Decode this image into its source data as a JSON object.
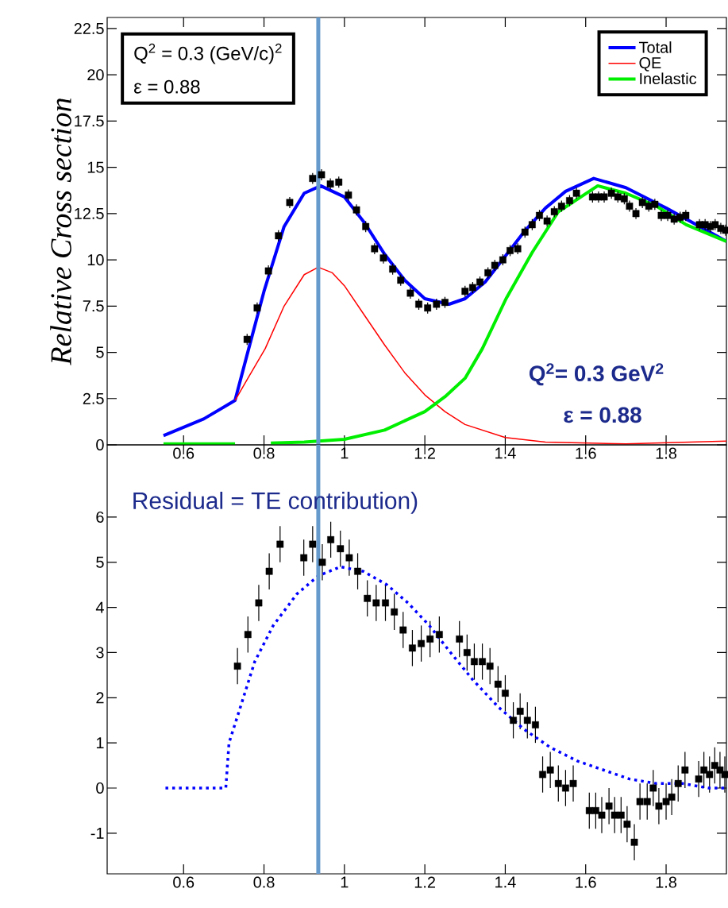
{
  "chart_data": [
    {
      "type": "line",
      "ylabel": "Relative Cross section",
      "xlim": [
        0.41,
        1.95
      ],
      "ylim": [
        0,
        23.1
      ],
      "xticks": [
        0.6,
        0.8,
        1,
        1.2,
        1.4,
        1.6,
        1.8
      ],
      "yticks": [
        0,
        2.5,
        5,
        7.5,
        10,
        12.5,
        15,
        17.5,
        20,
        22.5
      ],
      "legend": "top right",
      "annotations": [
        "Q$^{2}$ = 0.3 (GeV/c)$^{2}$",
        "ε = 0.88",
        "Q$^{2}$= 0.3 GeV$^{2}$",
        "ε = 0.88"
      ],
      "ref_lines": [
        {
          "axis": "x",
          "value": 0.935,
          "color": "#6699cc"
        }
      ],
      "series": [
        {
          "name": "Total",
          "color": "#0000ff",
          "line_style": "solid",
          "x": [
            0.55,
            0.65,
            0.728,
            0.762,
            0.8,
            0.85,
            0.9,
            0.941,
            1.0,
            1.05,
            1.1,
            1.15,
            1.2,
            1.26,
            1.3,
            1.35,
            1.4,
            1.45,
            1.5,
            1.55,
            1.62,
            1.7,
            1.8,
            1.9,
            1.95
          ],
          "values": [
            0.5,
            1.4,
            2.4,
            5.2,
            8.3,
            11.8,
            13.6,
            14.0,
            13.4,
            12.0,
            10.3,
            8.9,
            7.9,
            7.6,
            7.9,
            8.8,
            10.2,
            11.6,
            12.8,
            13.7,
            14.4,
            13.9,
            12.8,
            11.6,
            11.0
          ]
        },
        {
          "name": "QE",
          "color": "#ff0000",
          "line_style": "solid",
          "x": [
            0.728,
            0.76,
            0.803,
            0.85,
            0.9,
            0.935,
            0.97,
            1.0,
            1.05,
            1.1,
            1.15,
            1.2,
            1.25,
            1.3,
            1.4,
            1.5,
            1.7,
            1.95
          ],
          "values": [
            2.4,
            3.6,
            5.2,
            7.5,
            9.2,
            9.6,
            9.3,
            8.6,
            7.0,
            5.4,
            3.9,
            2.7,
            1.8,
            1.1,
            0.4,
            0.15,
            0.05,
            0.2
          ]
        },
        {
          "name": "Inelastic",
          "color": "#00ee00",
          "line_style": "solid",
          "x": [
            0.55,
            0.728,
            0.77,
            0.817,
            0.9,
            1.0,
            1.1,
            1.2,
            1.25,
            1.3,
            1.343,
            1.402,
            1.467,
            1.532,
            1.63,
            1.7,
            1.776,
            1.85,
            1.95
          ],
          "values": [
            0.05,
            0.05,
            null,
            0.1,
            0.15,
            0.3,
            0.8,
            1.8,
            2.6,
            3.6,
            5.2,
            7.9,
            10.4,
            12.6,
            14.0,
            13.6,
            12.9,
            11.9,
            11.0
          ]
        },
        {
          "type": "scatter",
          "color": "#000000",
          "marker": "square",
          "x": [
            0.758,
            0.783,
            0.811,
            0.836,
            0.864,
            0.921,
            0.943,
            0.965,
            0.986,
            1.01,
            1.03,
            1.053,
            1.075,
            1.097,
            1.12,
            1.14,
            1.164,
            1.185,
            1.207,
            1.229,
            1.25,
            1.3,
            1.319,
            1.337,
            1.357,
            1.374,
            1.394,
            1.412,
            1.431,
            1.449,
            1.467,
            1.485,
            1.504,
            1.522,
            1.54,
            1.56,
            1.577,
            1.617,
            1.632,
            1.646,
            1.664,
            1.68,
            1.696,
            1.709,
            1.725,
            1.741,
            1.757,
            1.772,
            1.788,
            1.804,
            1.82,
            1.835,
            1.849,
            1.883,
            1.897,
            1.91,
            1.922,
            1.936,
            1.948
          ],
          "values": [
            5.7,
            7.4,
            9.4,
            11.3,
            13.1,
            14.4,
            14.6,
            14.1,
            14.2,
            13.5,
            12.7,
            11.8,
            10.6,
            10.1,
            9.5,
            8.9,
            8.2,
            7.6,
            7.4,
            7.6,
            7.7,
            8.3,
            8.5,
            8.8,
            9.3,
            9.7,
            10.0,
            10.5,
            10.6,
            11.5,
            11.9,
            12.4,
            12.1,
            12.6,
            12.9,
            13.2,
            13.6,
            13.4,
            13.4,
            13.4,
            13.6,
            13.4,
            13.3,
            12.9,
            12.5,
            13.1,
            12.9,
            13.0,
            12.4,
            12.4,
            12.2,
            12.3,
            12.4,
            11.9,
            11.9,
            11.8,
            11.9,
            11.7,
            11.6
          ],
          "errors": [
            0.3,
            0.3,
            0.3,
            0.3,
            0.3,
            0.3,
            0.3,
            0.3,
            0.3,
            0.3,
            0.3,
            0.3,
            0.3,
            0.3,
            0.3,
            0.3,
            0.3,
            0.3,
            0.3,
            0.3,
            0.3,
            0.3,
            0.3,
            0.3,
            0.3,
            0.3,
            0.3,
            0.3,
            0.3,
            0.3,
            0.3,
            0.3,
            0.3,
            0.3,
            0.3,
            0.3,
            0.3,
            0.3,
            0.3,
            0.3,
            0.3,
            0.3,
            0.3,
            0.3,
            0.3,
            0.3,
            0.3,
            0.3,
            0.3,
            0.3,
            0.3,
            0.3,
            0.3,
            0.3,
            0.3,
            0.3,
            0.3,
            0.3,
            0.3
          ]
        }
      ]
    },
    {
      "type": "line",
      "xlim": [
        0.41,
        1.95
      ],
      "ylim": [
        -1.9,
        7.6
      ],
      "xticks": [
        0.6,
        0.8,
        1,
        1.2,
        1.4,
        1.6,
        1.8
      ],
      "yticks": [
        -1,
        0,
        1,
        2,
        3,
        4,
        5,
        6
      ],
      "annotations": [
        "Residual = TE contribution)"
      ],
      "ref_lines": [
        {
          "axis": "x",
          "value": 0.935,
          "color": "#6699cc"
        }
      ],
      "series": [
        {
          "type": "scatter",
          "color": "#000000",
          "marker": "square",
          "x": [
            0.734,
            0.76,
            0.787,
            0.813,
            0.84,
            0.899,
            0.921,
            0.945,
            0.966,
            0.99,
            1.012,
            1.033,
            1.057,
            1.079,
            1.102,
            1.124,
            1.146,
            1.169,
            1.191,
            1.213,
            1.236,
            1.286,
            1.305,
            1.323,
            1.343,
            1.362,
            1.382,
            1.4,
            1.42,
            1.437,
            1.455,
            1.475,
            1.493,
            1.512,
            1.532,
            1.55,
            1.569,
            1.609,
            1.625,
            1.64,
            1.658,
            1.672,
            1.688,
            1.703,
            1.721,
            1.735,
            1.753,
            1.768,
            1.782,
            1.8,
            1.814,
            1.83,
            1.847,
            1.881,
            1.894,
            1.908,
            1.921,
            1.934,
            1.946
          ],
          "values": [
            2.7,
            3.4,
            4.1,
            4.8,
            5.4,
            5.1,
            5.4,
            5.0,
            5.5,
            5.3,
            5.1,
            4.8,
            4.2,
            4.1,
            4.1,
            3.9,
            3.5,
            3.1,
            3.2,
            3.3,
            3.4,
            3.3,
            3.0,
            2.8,
            2.8,
            2.7,
            2.3,
            2.1,
            1.5,
            1.7,
            1.5,
            1.4,
            0.3,
            0.4,
            0.1,
            0.0,
            0.1,
            -0.5,
            -0.5,
            -0.6,
            -0.4,
            -0.6,
            -0.6,
            -0.8,
            -1.2,
            -0.3,
            -0.3,
            0.0,
            -0.4,
            -0.3,
            -0.2,
            0.1,
            0.4,
            0.2,
            0.4,
            0.3,
            0.5,
            0.4,
            0.3
          ],
          "errors": [
            0.4,
            0.4,
            0.4,
            0.4,
            0.4,
            0.4,
            0.4,
            0.4,
            0.4,
            0.4,
            0.4,
            0.4,
            0.4,
            0.4,
            0.4,
            0.4,
            0.4,
            0.4,
            0.4,
            0.4,
            0.4,
            0.4,
            0.4,
            0.4,
            0.4,
            0.4,
            0.4,
            0.4,
            0.4,
            0.4,
            0.4,
            0.4,
            0.4,
            0.4,
            0.4,
            0.4,
            0.4,
            0.4,
            0.4,
            0.4,
            0.4,
            0.4,
            0.4,
            0.4,
            0.4,
            0.4,
            0.4,
            0.4,
            0.4,
            0.4,
            0.4,
            0.4,
            0.4,
            0.4,
            0.4,
            0.4,
            0.4,
            0.4,
            0.4
          ]
        },
        {
          "color": "#0000ff",
          "line_style": "dotted",
          "x": [
            0.555,
            0.705,
            0.713,
            0.738,
            0.777,
            0.823,
            0.882,
            0.935,
            0.99,
            1.047,
            1.106,
            1.158,
            1.211,
            1.264,
            1.319,
            1.382,
            1.447,
            1.512,
            1.579,
            1.644,
            1.709,
            1.776,
            1.841,
            1.906,
            1.95
          ],
          "values": [
            0,
            0,
            1.0,
            1.7,
            2.8,
            3.6,
            4.3,
            4.7,
            4.9,
            4.8,
            4.5,
            4.1,
            3.6,
            3.0,
            2.4,
            1.8,
            1.3,
            0.9,
            0.6,
            0.4,
            0.2,
            0.1,
            0.1,
            0.0,
            0.0
          ]
        }
      ]
    }
  ]
}
